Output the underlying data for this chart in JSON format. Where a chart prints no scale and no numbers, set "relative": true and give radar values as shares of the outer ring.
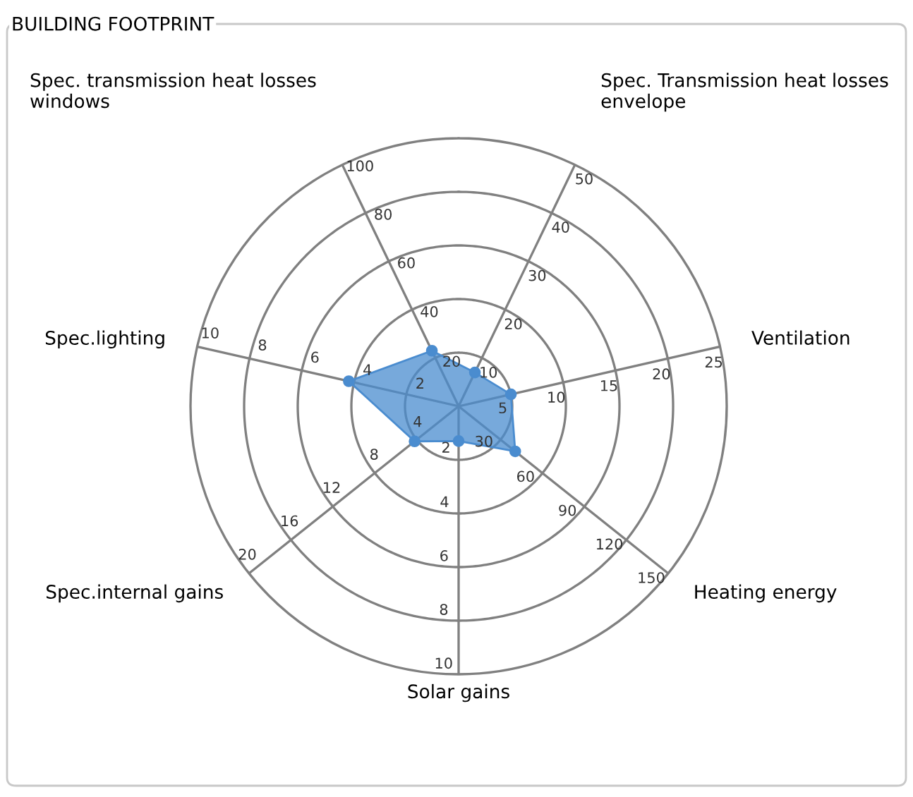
{
  "chart_data": {
    "type": "radar",
    "title": "BUILDING FOOTPRINT",
    "relative": true,
    "grid": true,
    "marker": "circle",
    "categories": [
      "Spec. Transmission heat losses\nenvelope",
      "Ventilation",
      "Heating energy",
      "Solar gains",
      "Spec.internal gains",
      "Spec.lighting",
      "Spec. transmission heat losses\nwindows"
    ],
    "series": [
      {
        "color": "#4a8ccf",
        "values": [
          0.14,
          0.2,
          0.27,
          0.13,
          0.21,
          0.42,
          0.23
        ]
      }
    ],
    "annotations": [
      "10",
      "20",
      "30",
      "40",
      "50",
      "5",
      "10",
      "15",
      "20",
      "25",
      "30",
      "60",
      "90",
      "120",
      "150",
      "2",
      "4",
      "6",
      "8",
      "10",
      "4",
      "8",
      "12",
      "16",
      "20",
      "2",
      "4",
      "6",
      "8",
      "10",
      "20",
      "40",
      "60",
      "80",
      "100"
    ]
  }
}
